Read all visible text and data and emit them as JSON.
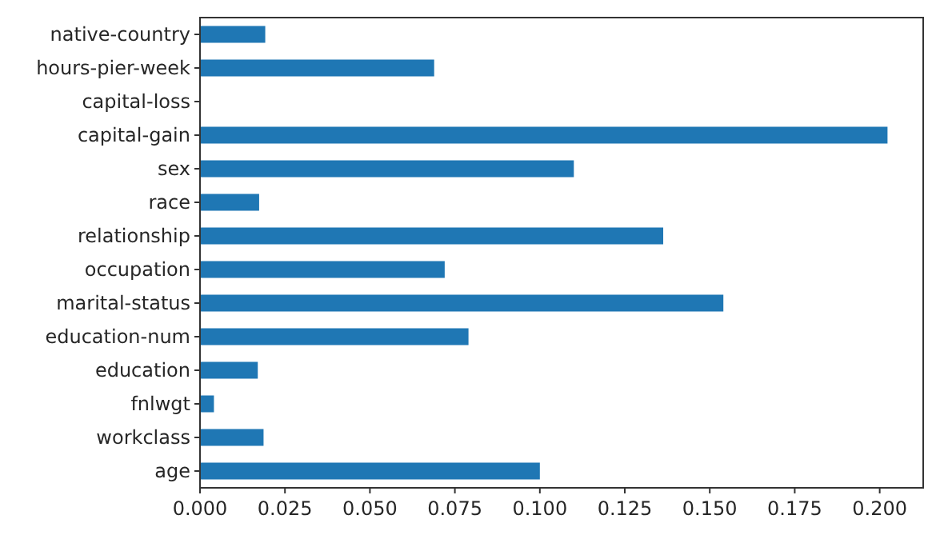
{
  "chart_data": {
    "type": "bar",
    "orientation": "horizontal",
    "categories": [
      "native-country",
      "hours-pier-week",
      "capital-loss",
      "capital-gain",
      "sex",
      "race",
      "relationship",
      "occupation",
      "marital-status",
      "education-num",
      "education",
      "fnlwgt",
      "workclass",
      "age"
    ],
    "values": [
      0.0192,
      0.0689,
      0,
      0.2023,
      0.11,
      0.0174,
      0.1363,
      0.072,
      0.154,
      0.079,
      0.017,
      0.0041,
      0.0187,
      0.1
    ],
    "color": "#1f77b4",
    "xlim": [
      0,
      0.2128
    ],
    "xticks": [
      {
        "value": 0,
        "label": "0.000"
      },
      {
        "value": 0.025,
        "label": "0.025"
      },
      {
        "value": 0.05,
        "label": "0.050"
      },
      {
        "value": 0.075,
        "label": "0.075"
      },
      {
        "value": 0.1,
        "label": "0.100"
      },
      {
        "value": 0.125,
        "label": "0.125"
      },
      {
        "value": 0.15,
        "label": "0.150"
      },
      {
        "value": 0.175,
        "label": "0.175"
      },
      {
        "value": 0.2,
        "label": "0.200"
      }
    ],
    "grid": false
  }
}
